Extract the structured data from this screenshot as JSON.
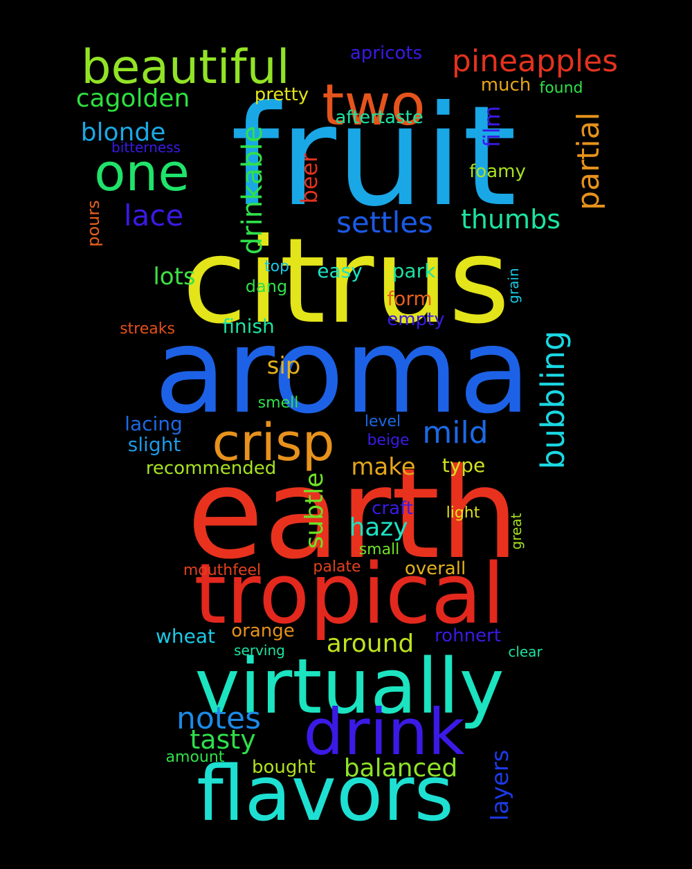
{
  "words": [
    {
      "text": "earth",
      "color": "#e8321e"
    },
    {
      "text": "aroma",
      "color": "#1d62e6"
    },
    {
      "text": "citrus",
      "color": "#e3e41a"
    },
    {
      "text": "fruit",
      "color": "#1aa7e6"
    },
    {
      "text": "tropical",
      "color": "#e3281e"
    },
    {
      "text": "virtually",
      "color": "#1ce3c0"
    },
    {
      "text": "flavors",
      "color": "#1ee0d2"
    },
    {
      "text": "drink",
      "color": "#3b1ae6"
    },
    {
      "text": "two",
      "color": "#e5541c"
    },
    {
      "text": "beautiful",
      "color": "#92e326"
    },
    {
      "text": "crisp",
      "color": "#e6921c"
    },
    {
      "text": "one",
      "color": "#1fe36a"
    },
    {
      "text": "pineapples",
      "color": "#e3321e"
    },
    {
      "text": "bubbling",
      "color": "#1ad8e3"
    },
    {
      "text": "mild",
      "color": "#1c6ae6"
    },
    {
      "text": "partial",
      "color": "#e6921c"
    },
    {
      "text": "notes",
      "color": "#1c8ae6"
    },
    {
      "text": "settles",
      "color": "#1c5ae6"
    },
    {
      "text": "drinkable",
      "color": "#30e04a"
    },
    {
      "text": "lace",
      "color": "#3a1ae3"
    },
    {
      "text": "thumbs",
      "color": "#1ce3a2"
    },
    {
      "text": "subtle",
      "color": "#6ee326"
    },
    {
      "text": "cagolden",
      "color": "#2ee040"
    },
    {
      "text": "blonde",
      "color": "#1ca8e6"
    },
    {
      "text": "tasty",
      "color": "#2ee04a"
    },
    {
      "text": "balanced",
      "color": "#8ee326"
    },
    {
      "text": "around",
      "color": "#bfe320"
    },
    {
      "text": "hazy",
      "color": "#1ce3c4"
    },
    {
      "text": "make",
      "color": "#e6a61c"
    },
    {
      "text": "beer",
      "color": "#e5321e"
    },
    {
      "text": "lots",
      "color": "#3ee046"
    },
    {
      "text": "layers",
      "color": "#1c3ae6"
    },
    {
      "text": "film",
      "color": "#3a1ae6"
    },
    {
      "text": "sip",
      "color": "#e6b21c"
    },
    {
      "text": "aftertaste",
      "color": "#1ce3a2"
    },
    {
      "text": "pretty",
      "color": "#e3e41a"
    },
    {
      "text": "apricots",
      "color": "#3a1ae6"
    },
    {
      "text": "much",
      "color": "#e6a61c"
    },
    {
      "text": "found",
      "color": "#30e04a"
    },
    {
      "text": "finish",
      "color": "#1ce3a2"
    },
    {
      "text": "easy",
      "color": "#1ce3c4"
    },
    {
      "text": "park",
      "color": "#1ce3a2"
    },
    {
      "text": "form",
      "color": "#e6601c"
    },
    {
      "text": "empty",
      "color": "#3a1ae6"
    },
    {
      "text": "foamy",
      "color": "#a8e320"
    },
    {
      "text": "recommended",
      "color": "#a8e320"
    },
    {
      "text": "type",
      "color": "#d2e320"
    },
    {
      "text": "lacing",
      "color": "#1c6ae6"
    },
    {
      "text": "slight",
      "color": "#1c9ae6"
    },
    {
      "text": "wheat",
      "color": "#1ccae6"
    },
    {
      "text": "orange",
      "color": "#e6921c"
    },
    {
      "text": "rohnert",
      "color": "#3a1ae6"
    },
    {
      "text": "overall",
      "color": "#e6b21c"
    },
    {
      "text": "craft",
      "color": "#3a1ae6"
    },
    {
      "text": "light",
      "color": "#e3e41a"
    },
    {
      "text": "bought",
      "color": "#b2e320"
    },
    {
      "text": "pours",
      "color": "#e6601c"
    },
    {
      "text": "bitterness",
      "color": "#3a1ae6"
    },
    {
      "text": "dang",
      "color": "#30e04a"
    },
    {
      "text": "top",
      "color": "#1ccae6"
    },
    {
      "text": "grain",
      "color": "#1ccae6"
    },
    {
      "text": "streaks",
      "color": "#e6501c"
    },
    {
      "text": "smell",
      "color": "#30e04a"
    },
    {
      "text": "level",
      "color": "#1c6ae6"
    },
    {
      "text": "beige",
      "color": "#3a1ae6"
    },
    {
      "text": "mouthfeel",
      "color": "#e5401e"
    },
    {
      "text": "palate",
      "color": "#e5401e"
    },
    {
      "text": "small",
      "color": "#6ee326"
    },
    {
      "text": "great",
      "color": "#a8e320"
    },
    {
      "text": "serving",
      "color": "#1ce3a2"
    },
    {
      "text": "clear",
      "color": "#1ce3a2"
    },
    {
      "text": "amount",
      "color": "#30e04a"
    }
  ]
}
